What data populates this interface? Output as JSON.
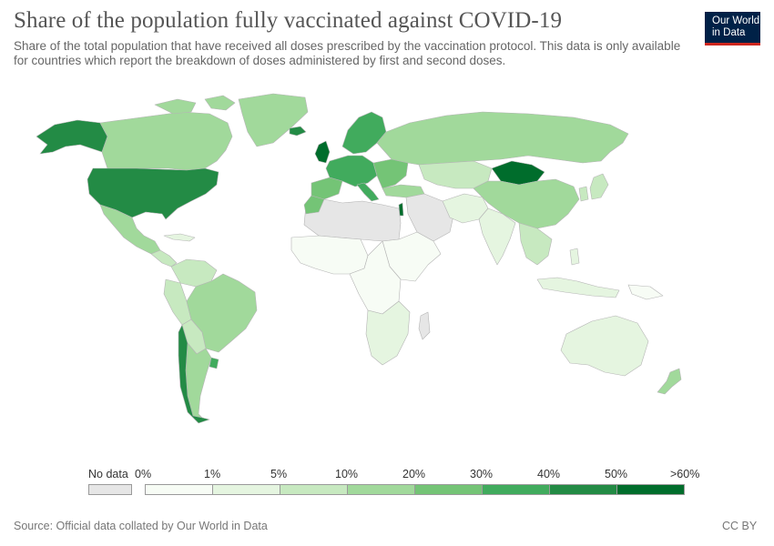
{
  "header": {
    "title": "Share of the population fully vaccinated against COVID-19",
    "subtitle": "Share of the total population that have received all doses prescribed by the vaccination protocol. This data is only available for countries which report the breakdown of doses administered by first and second doses."
  },
  "logo": {
    "line1": "Our World",
    "line2": "in Data",
    "bg_color": "#002147",
    "accent_color": "#ce261e"
  },
  "colors": {
    "no_data": "#e6e6e6",
    "bin_0_1": "#f7fcf5",
    "bin_1_5": "#e5f5e0",
    "bin_5_10": "#c7e9c0",
    "bin_10_20": "#a1d99b",
    "bin_20_30": "#74c476",
    "bin_30_40": "#41ab5d",
    "bin_40_50": "#238b45",
    "bin_50_60": "#006d2c",
    "border": "#bdbdbd",
    "ocean": "#ffffff"
  },
  "legend": {
    "no_data_label": "No data",
    "ticks": [
      "0%",
      "1%",
      "5%",
      "10%",
      "20%",
      "30%",
      "40%",
      "50%",
      ">60%"
    ]
  },
  "footer": {
    "source": "Source: Official data collated by Our World in Data",
    "license": "CC BY"
  }
}
